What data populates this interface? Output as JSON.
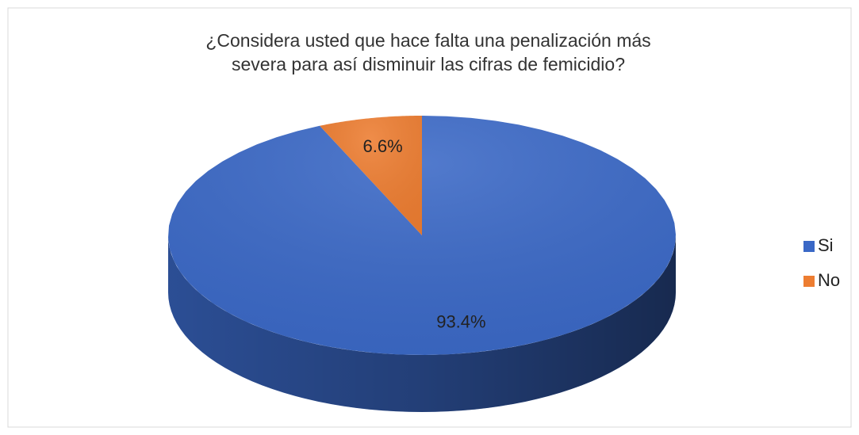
{
  "chart_data": {
    "type": "pie",
    "title": "¿Considera usted que hace falta una penalización más severa para así disminuir las cifras de femicidio?",
    "categories": [
      "Si",
      "No"
    ],
    "values": [
      93.4,
      6.6
    ],
    "value_labels": [
      "93.4%",
      "6.6%"
    ],
    "colors": [
      "#3a68c6",
      "#ed7d31"
    ],
    "legend": "right",
    "3d": true
  }
}
